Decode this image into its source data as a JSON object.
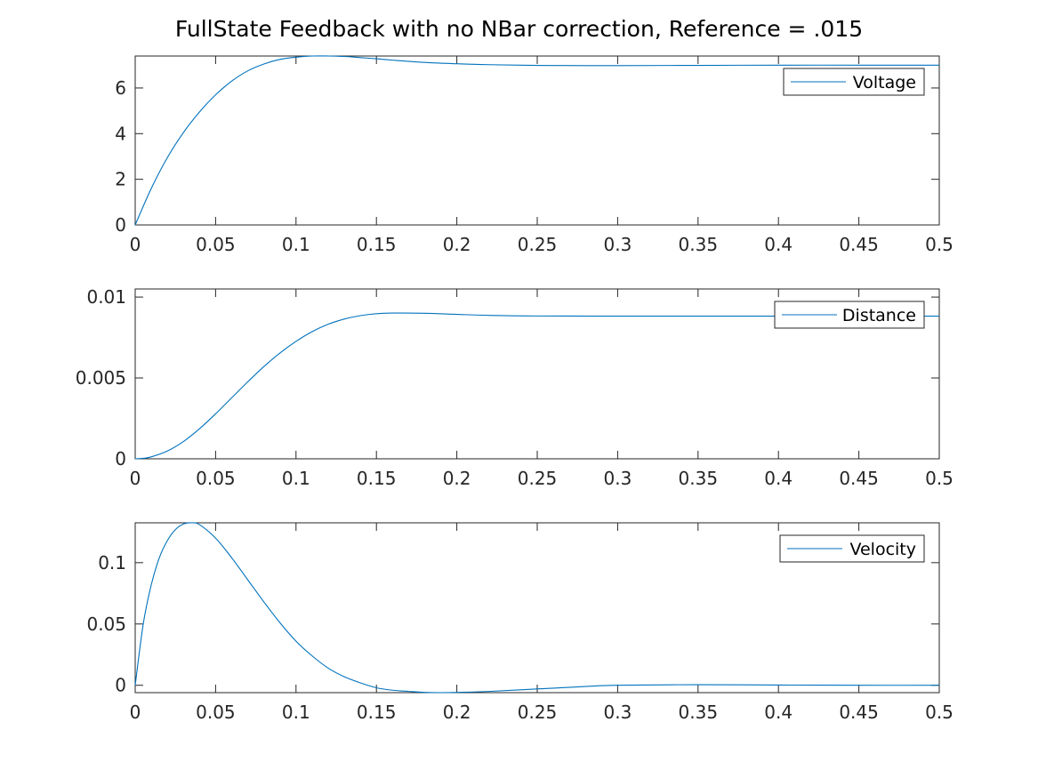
{
  "title": "FullState Feedback with no NBar correction, Reference = .015",
  "colors": {
    "line": "#0072BD",
    "axes": "#262626",
    "background": "#ffffff"
  },
  "chart_data": [
    {
      "type": "line",
      "series": [
        {
          "name": "Voltage",
          "x": [
            0,
            0.01,
            0.02,
            0.03,
            0.04,
            0.05,
            0.06,
            0.07,
            0.08,
            0.09,
            0.1,
            0.11,
            0.12,
            0.13,
            0.14,
            0.15,
            0.16,
            0.18,
            0.2,
            0.22,
            0.25,
            0.28,
            0.3,
            0.35,
            0.4,
            0.45,
            0.5
          ],
          "y": [
            0,
            1.6,
            2.95,
            4.05,
            4.95,
            5.7,
            6.3,
            6.75,
            7.05,
            7.25,
            7.35,
            7.4,
            7.4,
            7.38,
            7.33,
            7.28,
            7.22,
            7.12,
            7.06,
            7.02,
            6.99,
            6.98,
            6.98,
            6.99,
            7.0,
            7.0,
            7.0
          ]
        }
      ],
      "xlim": [
        0,
        0.5
      ],
      "ylim": [
        0,
        7.4
      ],
      "xticks": [
        "0",
        "0.05",
        "0.1",
        "0.15",
        "0.2",
        "0.25",
        "0.3",
        "0.35",
        "0.4",
        "0.45",
        "0.5"
      ],
      "yticks": [
        0,
        2,
        4,
        6
      ],
      "ytick_labels": [
        "0",
        "2",
        "4",
        "6"
      ],
      "legend": "top-right",
      "grid": false
    },
    {
      "type": "line",
      "series": [
        {
          "name": "Distance",
          "x": [
            0,
            0.005,
            0.01,
            0.02,
            0.03,
            0.04,
            0.05,
            0.06,
            0.07,
            0.08,
            0.09,
            0.1,
            0.11,
            0.12,
            0.13,
            0.14,
            0.15,
            0.16,
            0.18,
            0.2,
            0.22,
            0.25,
            0.3,
            0.35,
            0.4,
            0.45,
            0.5
          ],
          "y": [
            0,
            3e-05,
            0.00012,
            0.00048,
            0.00107,
            0.00186,
            0.00278,
            0.00377,
            0.00476,
            0.0057,
            0.00654,
            0.00726,
            0.00786,
            0.00832,
            0.00864,
            0.00885,
            0.00897,
            0.00901,
            0.009,
            0.00893,
            0.00887,
            0.00883,
            0.00882,
            0.00882,
            0.00882,
            0.00882,
            0.00882
          ]
        }
      ],
      "xlim": [
        0,
        0.5
      ],
      "ylim": [
        0,
        0.0105
      ],
      "xticks": [
        "0",
        "0.05",
        "0.1",
        "0.15",
        "0.2",
        "0.25",
        "0.3",
        "0.35",
        "0.4",
        "0.45",
        "0.5"
      ],
      "yticks": [
        0,
        0.005,
        0.01
      ],
      "ytick_labels": [
        "0",
        "0.005",
        "0.01"
      ],
      "legend": "top-right",
      "grid": false
    },
    {
      "type": "line",
      "series": [
        {
          "name": "Velocity",
          "x": [
            0,
            0.005,
            0.01,
            0.015,
            0.02,
            0.025,
            0.03,
            0.035,
            0.04,
            0.05,
            0.06,
            0.07,
            0.08,
            0.09,
            0.1,
            0.11,
            0.12,
            0.13,
            0.14,
            0.15,
            0.16,
            0.17,
            0.18,
            0.19,
            0.2,
            0.22,
            0.25,
            0.28,
            0.3,
            0.35,
            0.4,
            0.45,
            0.5
          ],
          "y": [
            0,
            0.05,
            0.082,
            0.104,
            0.118,
            0.127,
            0.1315,
            0.1325,
            0.131,
            0.12,
            0.104,
            0.086,
            0.068,
            0.051,
            0.036,
            0.024,
            0.014,
            0.007,
            0.002,
            -0.002,
            -0.004,
            -0.005,
            -0.0058,
            -0.006,
            -0.0058,
            -0.005,
            -0.003,
            -0.001,
            0,
            0.0005,
            0.0002,
            0,
            0
          ]
        }
      ],
      "xlim": [
        0,
        0.5
      ],
      "ylim": [
        -0.006,
        0.1325
      ],
      "xticks": [
        "0",
        "0.05",
        "0.1",
        "0.15",
        "0.2",
        "0.25",
        "0.3",
        "0.35",
        "0.4",
        "0.45",
        "0.5"
      ],
      "yticks": [
        0,
        0.05,
        0.1
      ],
      "ytick_labels": [
        "0",
        "0.05",
        "0.1"
      ],
      "legend": "top-right",
      "grid": false
    }
  ]
}
